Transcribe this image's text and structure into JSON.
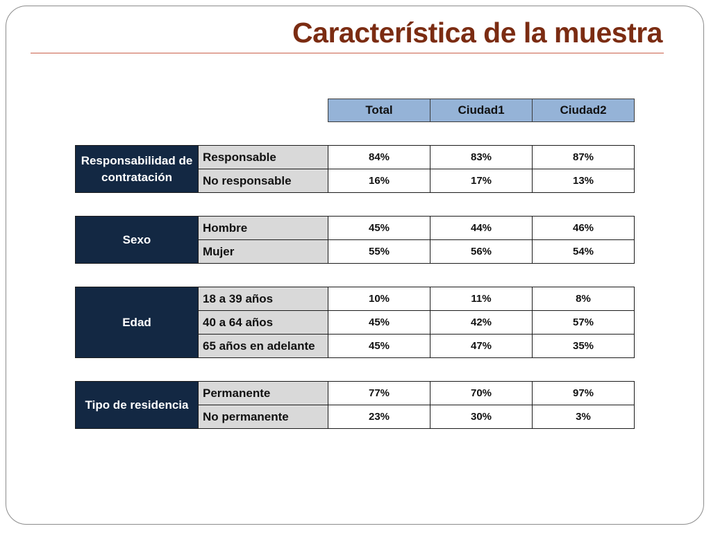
{
  "title": "Característica de la muestra",
  "columns": [
    "Total",
    "Ciudad1",
    "Ciudad2"
  ],
  "groups": [
    {
      "category": "Responsabilidad de contratación",
      "rows": [
        {
          "label": "Responsable",
          "values": [
            "84%",
            "83%",
            "87%"
          ]
        },
        {
          "label": "No responsable",
          "values": [
            "16%",
            "17%",
            "13%"
          ]
        }
      ]
    },
    {
      "category": "Sexo",
      "rows": [
        {
          "label": "Hombre",
          "values": [
            "45%",
            "44%",
            "46%"
          ]
        },
        {
          "label": "Mujer",
          "values": [
            "55%",
            "56%",
            "54%"
          ]
        }
      ]
    },
    {
      "category": "Edad",
      "rows": [
        {
          "label": "18 a 39 años",
          "values": [
            "10%",
            "11%",
            "8%"
          ]
        },
        {
          "label": "40 a 64 años",
          "values": [
            "45%",
            "42%",
            "57%"
          ]
        },
        {
          "label": "65 años en adelante",
          "values": [
            "45%",
            "47%",
            "35%"
          ]
        }
      ]
    },
    {
      "category": "Tipo de residencia",
      "rows": [
        {
          "label": "Permanente",
          "values": [
            "77%",
            "70%",
            "97%"
          ]
        },
        {
          "label": "No permanente",
          "values": [
            "23%",
            "30%",
            "3%"
          ]
        }
      ]
    }
  ]
}
